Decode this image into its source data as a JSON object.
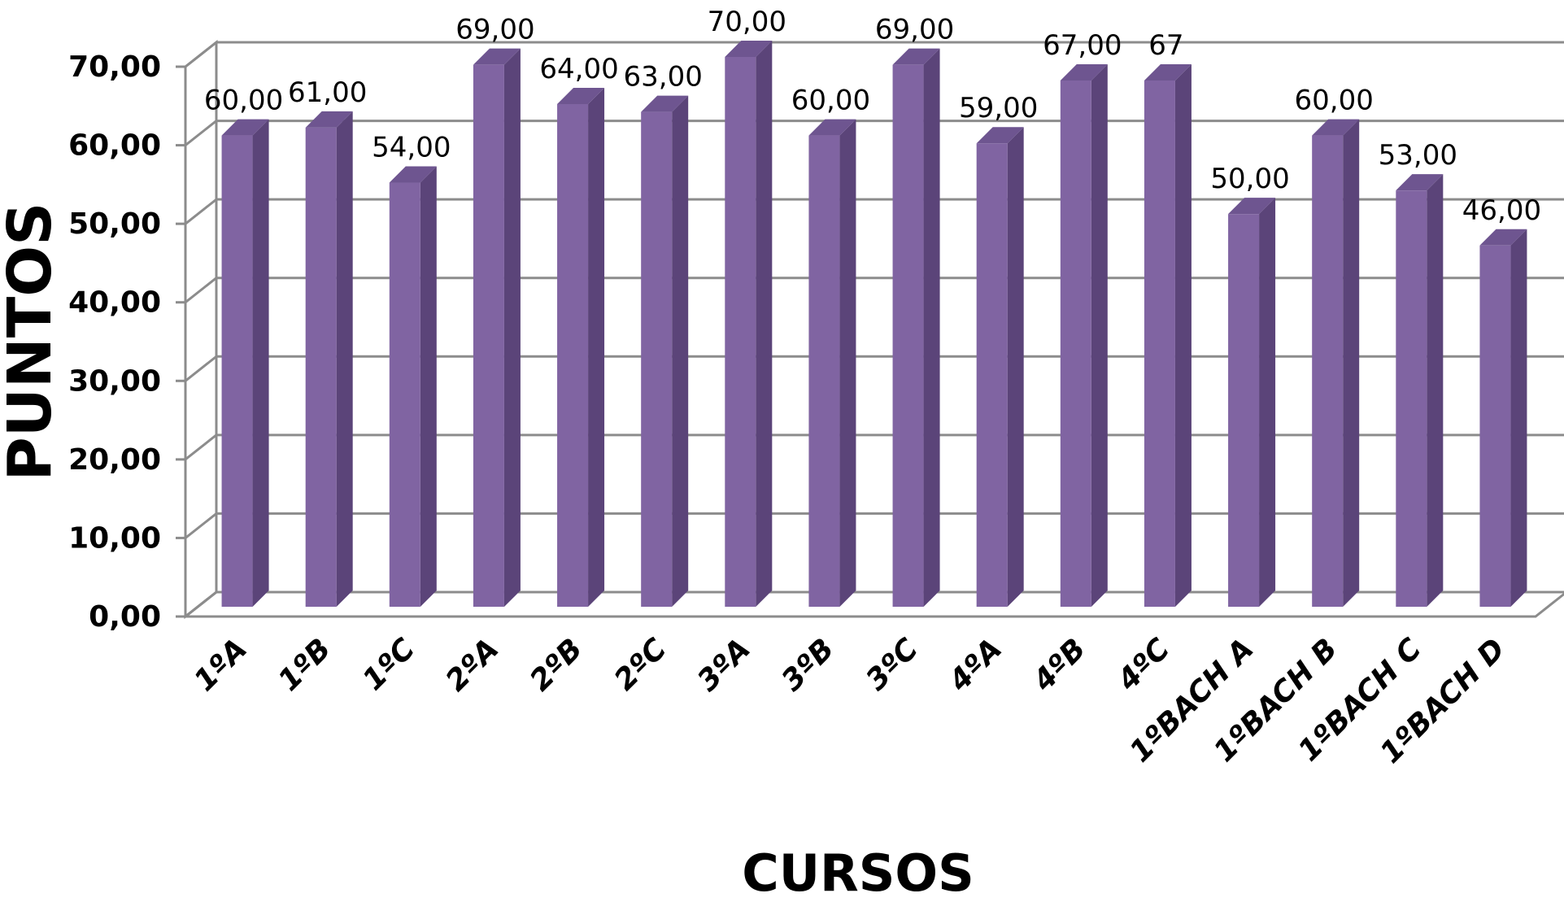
{
  "chart_data": {
    "type": "bar",
    "title": "",
    "xlabel": "CURSOS",
    "ylabel": "PUNTOS",
    "categories": [
      "1ºA",
      "1ºB",
      "1ºC",
      "2ºA",
      "2ºB",
      "2ºC",
      "3ºA",
      "3ºB",
      "3ºC",
      "4ºA",
      "4ºB",
      "4ºC",
      "1ºBACH A",
      "1ºBACH B",
      "1ºBACH C",
      "1ºBACH D"
    ],
    "values": [
      60,
      61,
      54,
      69,
      64,
      63,
      70,
      60,
      69,
      59,
      67,
      67,
      50,
      60,
      53,
      46
    ],
    "data_labels": [
      "60,00",
      "61,00",
      "54,00",
      "69,00",
      "64,00",
      "63,00",
      "70,00",
      "60,00",
      "69,00",
      "59,00",
      "67,00",
      "67",
      "50,00",
      "60,00",
      "53,00",
      "46,00"
    ],
    "yticks": [
      "0,00",
      "10,00",
      "20,00",
      "30,00",
      "40,00",
      "50,00",
      "60,00",
      "70,00"
    ],
    "ylim": [
      0,
      70
    ],
    "grid": true,
    "legend": "none",
    "colors": {
      "bar_front": "#8064A2",
      "bar_side": "#5B4479",
      "bar_top": "#6E5590",
      "grid": "#8C8C8C"
    }
  }
}
